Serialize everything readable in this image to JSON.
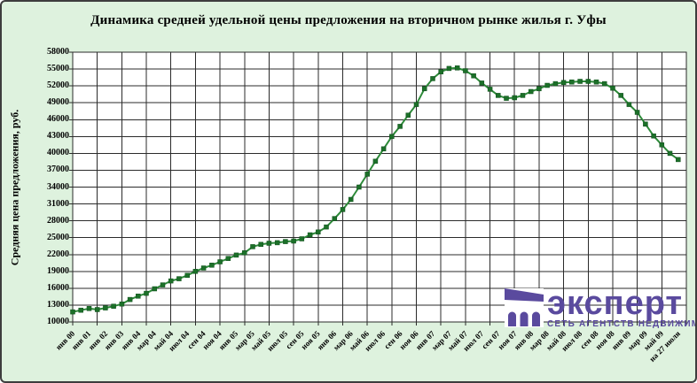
{
  "chart_data": {
    "type": "line",
    "title": "Динамика средней удельной цены предложения на вторичном рынке жилья г. Уфы",
    "ylabel": "Средняя цена предложения, руб.",
    "ylim": [
      10000,
      58000
    ],
    "ytick_step": 3000,
    "grid": "both",
    "legend": "none",
    "line_color": "#2e8b3a",
    "marker_color": "#1c7029",
    "x_labels": [
      "янв 00",
      "янв 01",
      "янв 02",
      "янв 03",
      "янв 04",
      "мар 04",
      "май 04",
      "июл 04",
      "сен 04",
      "ноя 04",
      "янв 05",
      "мар 05",
      "май 05",
      "июл 05",
      "сен 05",
      "ноя 05",
      "янв 06",
      "мар 06",
      "май 06",
      "июл 06",
      "сен 06",
      "ноя 06",
      "янв 07",
      "мар 07",
      "май 07",
      "июл 07",
      "сен 07",
      "ноя 07",
      "янв 08",
      "мар 08",
      "май 08",
      "июл 08",
      "сен 08",
      "ноя 08",
      "янв 09",
      "мар 09",
      "май 09",
      "на 27 июля"
    ],
    "label_every_n_points": 2,
    "tick_every_n_points": 3,
    "series": [
      {
        "name": "Средняя удельная цена предложения",
        "values": [
          11800,
          12100,
          12400,
          12200,
          12500,
          12800,
          13200,
          14000,
          14600,
          15100,
          15900,
          16600,
          17300,
          17700,
          18300,
          19000,
          19600,
          20100,
          20700,
          21300,
          21900,
          22300,
          23400,
          23800,
          24000,
          24100,
          24300,
          24400,
          24800,
          25500,
          26000,
          26900,
          28400,
          30000,
          31800,
          34000,
          36300,
          38600,
          40800,
          43000,
          44800,
          46800,
          48700,
          51500,
          53300,
          54500,
          55100,
          55200,
          54700,
          53800,
          52500,
          51400,
          50300,
          49800,
          49900,
          50300,
          51000,
          51500,
          52100,
          52400,
          52600,
          52700,
          52800,
          52800,
          52700,
          52400,
          51600,
          50300,
          48700,
          47300,
          45200,
          43100,
          41500,
          40000,
          38900
        ]
      }
    ]
  },
  "logo": {
    "brand": "эксперт",
    "tagline": "СЕТЬ АГЕНТСТВ НЕДВИЖИМОСТИ",
    "color": "#5a4a9e",
    "icon": "building-arches-icon"
  }
}
